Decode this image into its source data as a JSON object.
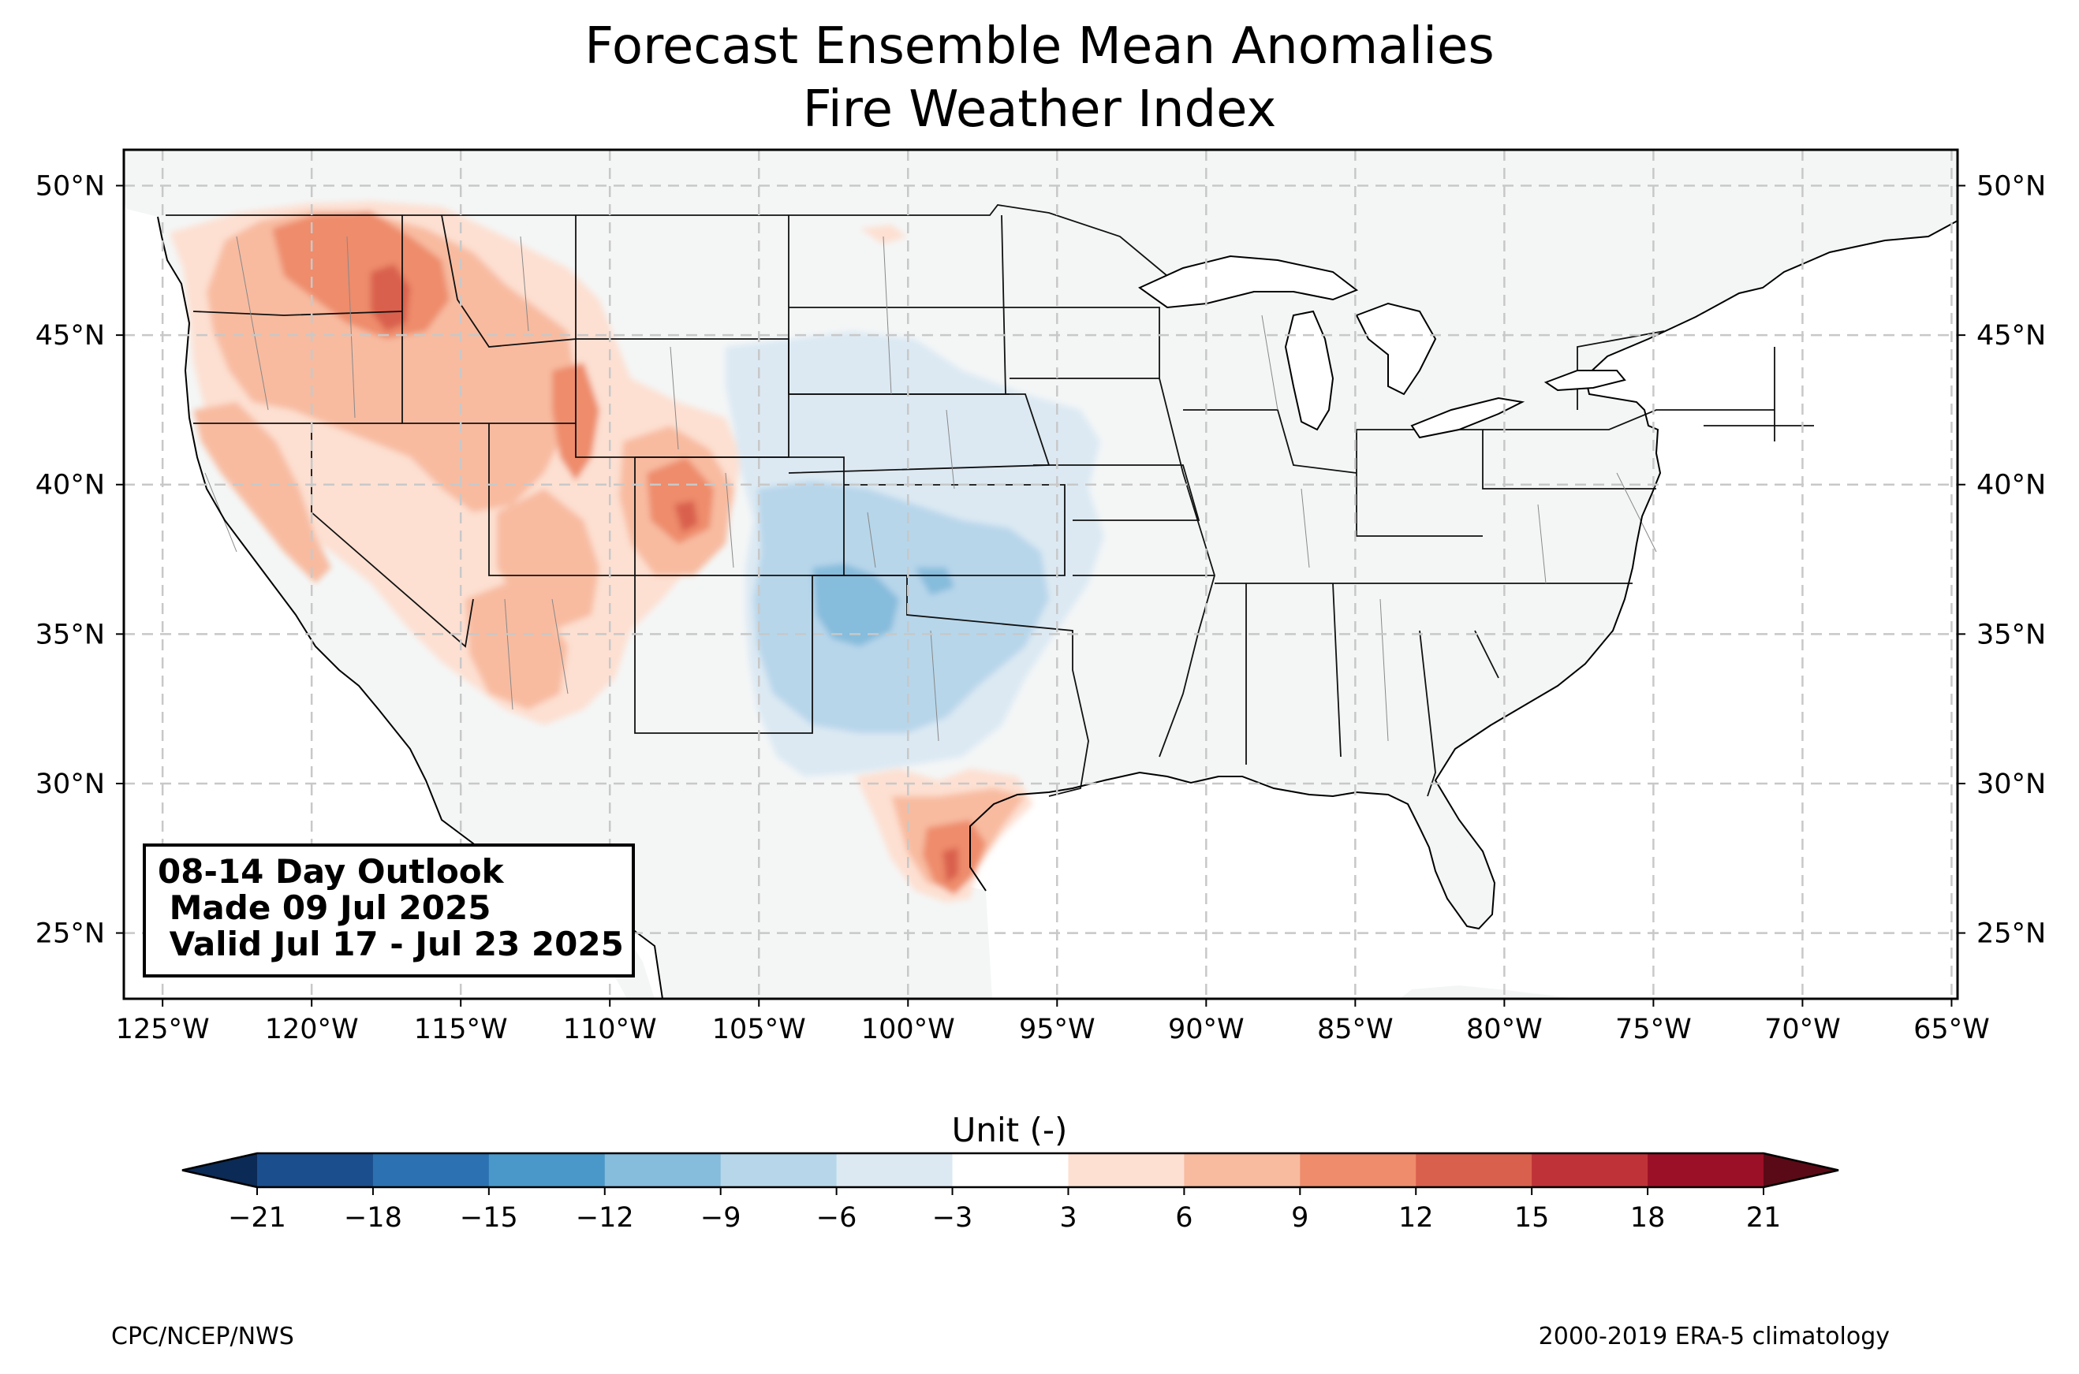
{
  "title": {
    "line1": "Forecast Ensemble Mean Anomalies",
    "line2": "Fire Weather Index"
  },
  "map": {
    "lon_range": [
      -126.3,
      -64.8
    ],
    "lat_range": [
      22.8,
      51.2
    ],
    "lon_ticks": [
      {
        "value": -125,
        "label": "125°W"
      },
      {
        "value": -120,
        "label": "120°W"
      },
      {
        "value": -115,
        "label": "115°W"
      },
      {
        "value": -110,
        "label": "110°W"
      },
      {
        "value": -105,
        "label": "105°W"
      },
      {
        "value": -100,
        "label": "100°W"
      },
      {
        "value": -95,
        "label": "95°W"
      },
      {
        "value": -90,
        "label": "90°W"
      },
      {
        "value": -85,
        "label": "85°W"
      },
      {
        "value": -80,
        "label": "80°W"
      },
      {
        "value": -75,
        "label": "75°W"
      },
      {
        "value": -70,
        "label": "70°W"
      },
      {
        "value": -65,
        "label": "65°W"
      }
    ],
    "lat_ticks": [
      {
        "value": 50,
        "label": "50°N"
      },
      {
        "value": 45,
        "label": "45°N"
      },
      {
        "value": 40,
        "label": "40°N"
      },
      {
        "value": 35,
        "label": "35°N"
      },
      {
        "value": 30,
        "label": "30°N"
      },
      {
        "value": 25,
        "label": "25°N"
      }
    ],
    "grid": true,
    "land_color": "#f4f6f6",
    "anomaly_regions": [
      {
        "region": "Pacific Northwest / Northern Rockies",
        "level": 6
      },
      {
        "region": "Idaho panhandle",
        "level": 12
      },
      {
        "region": "Great Basin / California",
        "level": 3
      },
      {
        "region": "Utah / Colorado",
        "level": 6
      },
      {
        "region": "Arizona",
        "level": 3
      },
      {
        "region": "Central Plains / Nebraska",
        "level": -3
      },
      {
        "region": "Kansas / Oklahoma / North Texas",
        "level": -6
      },
      {
        "region": "Texas Panhandle",
        "level": -9
      },
      {
        "region": "South Texas",
        "level": 9
      }
    ]
  },
  "info_box": {
    "line1": "08-14 Day Outlook",
    "line2": " Made 09 Jul 2025",
    "line3": " Valid Jul 17 - Jul 23 2025"
  },
  "colorbar": {
    "label": "Unit (-)",
    "levels": [
      -21,
      -18,
      -15,
      -12,
      -9,
      -6,
      -3,
      3,
      6,
      9,
      12,
      15,
      18,
      21
    ],
    "tick_labels": [
      "−21",
      "−18",
      "−15",
      "−12",
      "−9",
      "−6",
      "−3",
      "3",
      "6",
      "9",
      "12",
      "15",
      "18",
      "21"
    ],
    "colors": [
      "#1b4e8c",
      "#2c72b2",
      "#4a98c9",
      "#86bcdc",
      "#b7d6ea",
      "#dce9f3",
      "#ffffff",
      "#fde0d2",
      "#f8bba0",
      "#ee8c6c",
      "#d9604d",
      "#bf3238",
      "#9b1027"
    ],
    "under_color": "#0b2a55",
    "over_color": "#5a0a16"
  },
  "credits": {
    "left": "CPC/NCEP/NWS",
    "right": "2000-2019 ERA-5 climatology"
  }
}
